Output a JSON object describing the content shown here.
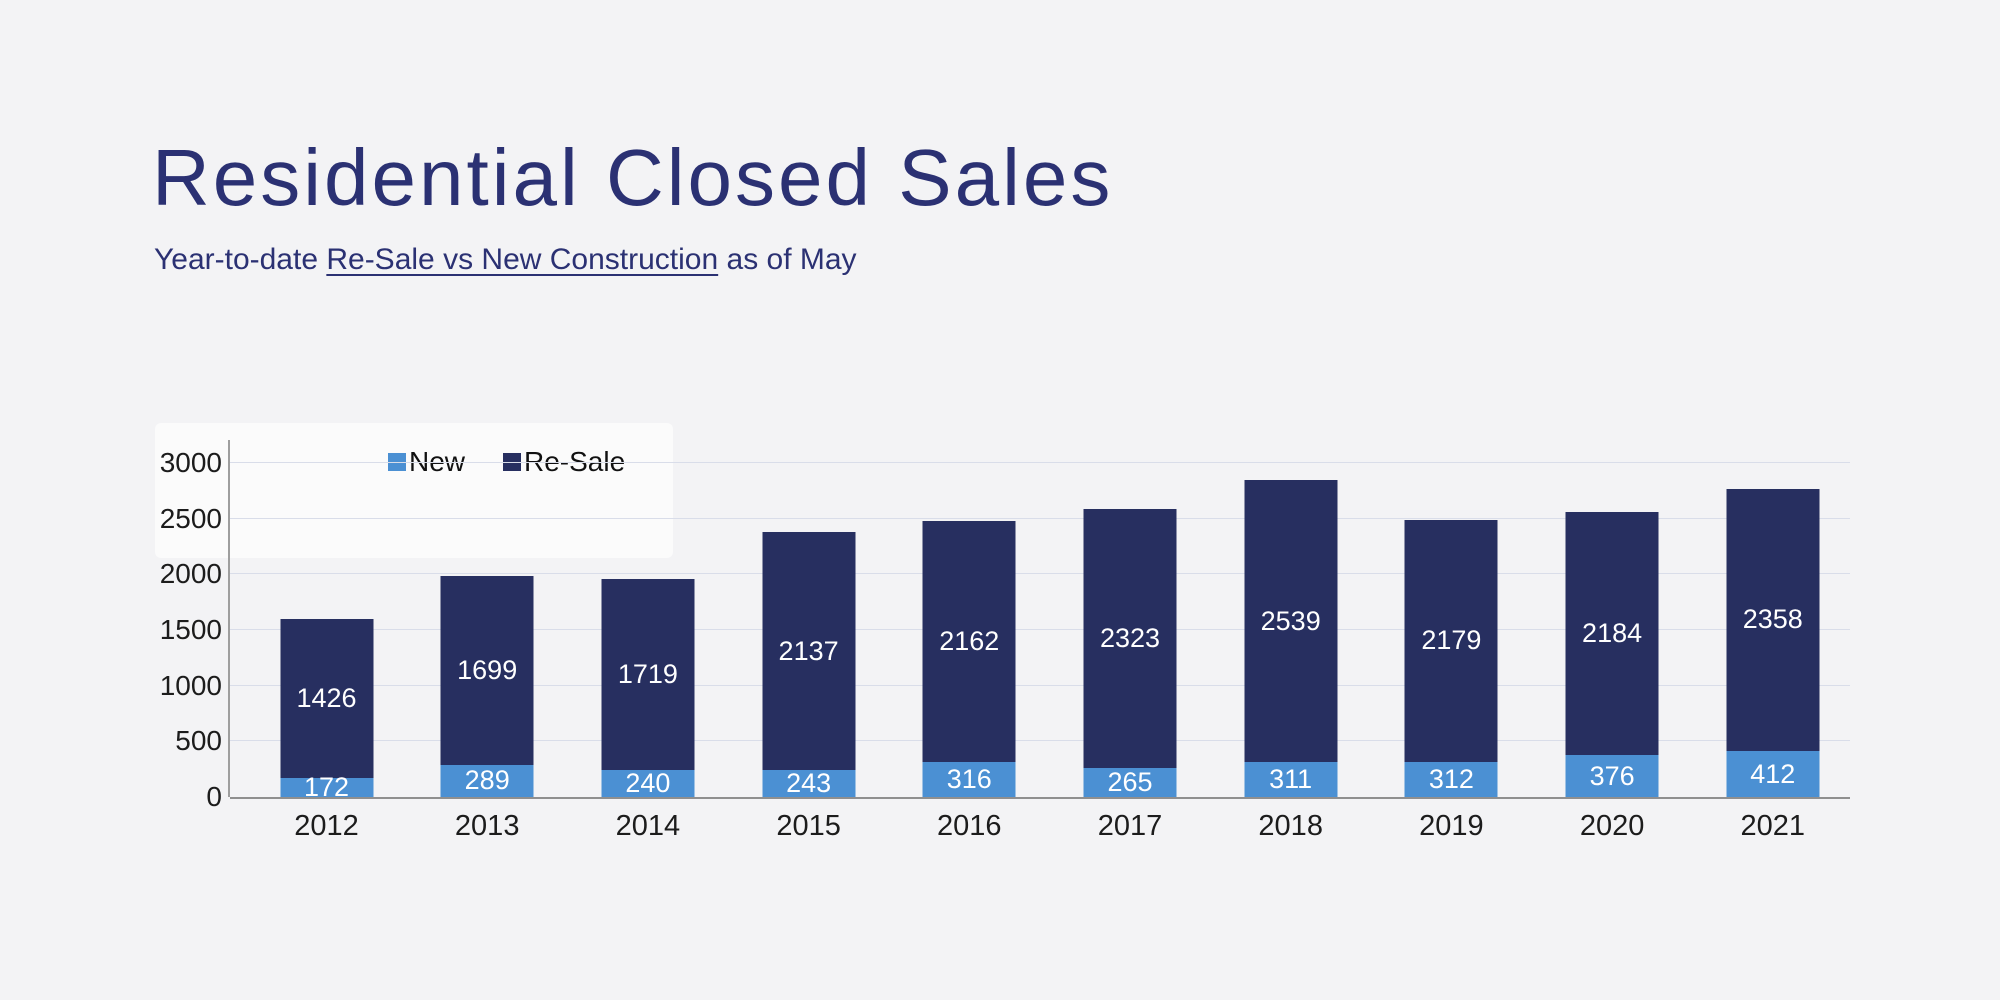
{
  "header": {
    "title": "Residential Closed Sales",
    "subtitle_prefix": "Year-to-date ",
    "subtitle_underlined": "Re-Sale vs New Construction",
    "subtitle_suffix": " as of May"
  },
  "colors": {
    "title_text": "#2b3173",
    "new_series": "#4b90d3",
    "resale_series": "#272f60",
    "value_label": "#ffffff",
    "background": "#f3f3f5"
  },
  "chart_data": {
    "type": "bar",
    "stacked": true,
    "title": "",
    "xlabel": "",
    "ylabel": "",
    "categories": [
      "2012",
      "2013",
      "2014",
      "2015",
      "2016",
      "2017",
      "2018",
      "2019",
      "2020",
      "2021"
    ],
    "series": [
      {
        "name": "New",
        "color": "#4b90d3",
        "values": [
          172,
          289,
          240,
          243,
          316,
          265,
          311,
          312,
          376,
          412
        ]
      },
      {
        "name": "Re-Sale",
        "color": "#272f60",
        "values": [
          1426,
          1699,
          1719,
          2137,
          2162,
          2323,
          2539,
          2179,
          2184,
          2358
        ]
      }
    ],
    "ylim": [
      0,
      3000
    ],
    "yticks": [
      0,
      500,
      1000,
      1500,
      2000,
      2500,
      3000
    ],
    "grid": true,
    "legend_position": "top-left-inside",
    "value_labels": true
  }
}
